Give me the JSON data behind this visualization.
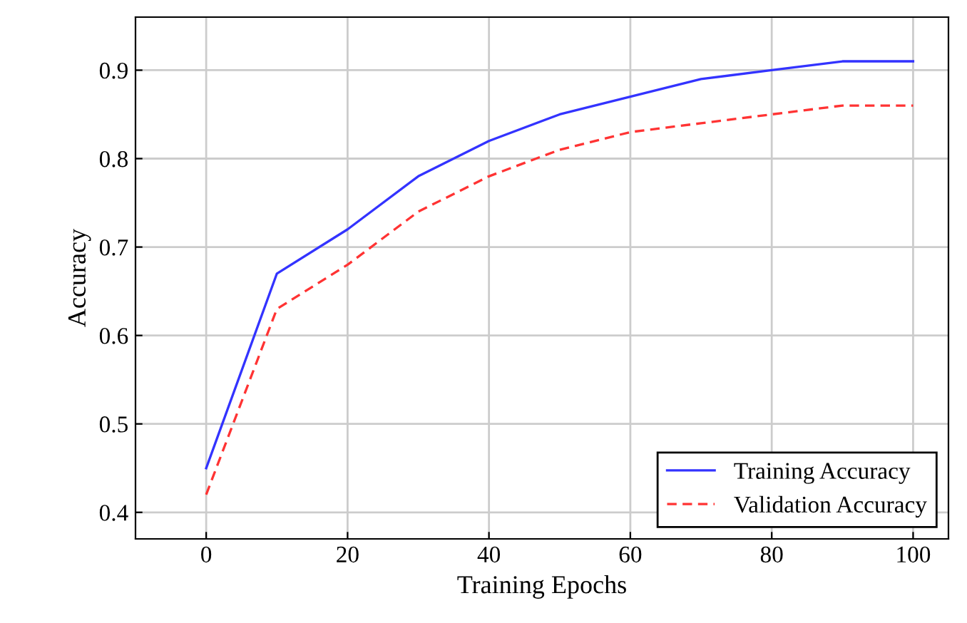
{
  "chart_data": {
    "type": "line",
    "xlabel": "Training Epochs",
    "ylabel": "Accuracy",
    "x": [
      0,
      10,
      20,
      30,
      40,
      50,
      60,
      70,
      80,
      90,
      100
    ],
    "series": [
      {
        "name": "Training Accuracy",
        "color": "#3333ff",
        "line_style": "solid",
        "values": [
          0.45,
          0.67,
          0.72,
          0.78,
          0.82,
          0.85,
          0.87,
          0.89,
          0.9,
          0.91,
          0.91
        ]
      },
      {
        "name": "Validation Accuracy",
        "color": "#ff3333",
        "line_style": "dashed",
        "values": [
          0.42,
          0.63,
          0.68,
          0.74,
          0.78,
          0.81,
          0.83,
          0.84,
          0.85,
          0.86,
          0.86
        ]
      }
    ],
    "xlim": [
      -10,
      105
    ],
    "xticks": [
      0,
      20,
      40,
      60,
      80,
      100
    ],
    "ylim": [
      0.37,
      0.96
    ],
    "yticks": [
      0.4,
      0.5,
      0.6,
      0.7,
      0.8,
      0.9
    ],
    "grid": true,
    "legend": "bottom right"
  }
}
